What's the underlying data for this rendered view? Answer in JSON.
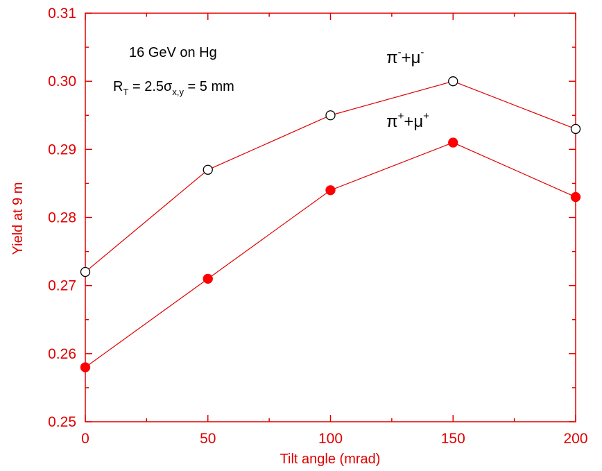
{
  "chart_data": {
    "type": "line",
    "title": "",
    "xlabel": "Tilt angle (mrad)",
    "ylabel": "Yield at 9 m",
    "xlim": [
      0,
      200
    ],
    "ylim": [
      0.25,
      0.31
    ],
    "xticks": [
      "0",
      "50",
      "100",
      "150",
      "200"
    ],
    "yticks": [
      "0.25",
      "0.26",
      "0.27",
      "0.28",
      "0.29",
      "0.30",
      "0.31"
    ],
    "x": [
      0,
      50,
      100,
      150,
      200
    ],
    "series": [
      {
        "name": "π⁻+μ⁻",
        "values": [
          0.272,
          0.287,
          0.295,
          0.3,
          0.293
        ],
        "marker": "open-circle"
      },
      {
        "name": "π⁺+μ⁺",
        "values": [
          0.258,
          0.271,
          0.284,
          0.291,
          0.283
        ],
        "marker": "filled-circle"
      }
    ],
    "annotations": {
      "line1": "16 GeV on Hg",
      "line2_lead": "R",
      "line2_sub1": "T",
      "line2_mid": " = 2.5σ",
      "line2_sub2": "x,y",
      "line2_tail": " = 5 mm"
    },
    "series_labels": {
      "neg_base1": "π",
      "neg_sup1": "-",
      "neg_mid": "+μ",
      "neg_sup2": "-",
      "pos_base1": "π",
      "pos_sup1": "+",
      "pos_mid": "+μ",
      "pos_sup2": "+"
    },
    "grid": false,
    "legend": "none",
    "colors": {
      "axis": "#e00000",
      "line": "#e00000",
      "marker_fill": "#ff0000",
      "text": "#000000"
    }
  }
}
